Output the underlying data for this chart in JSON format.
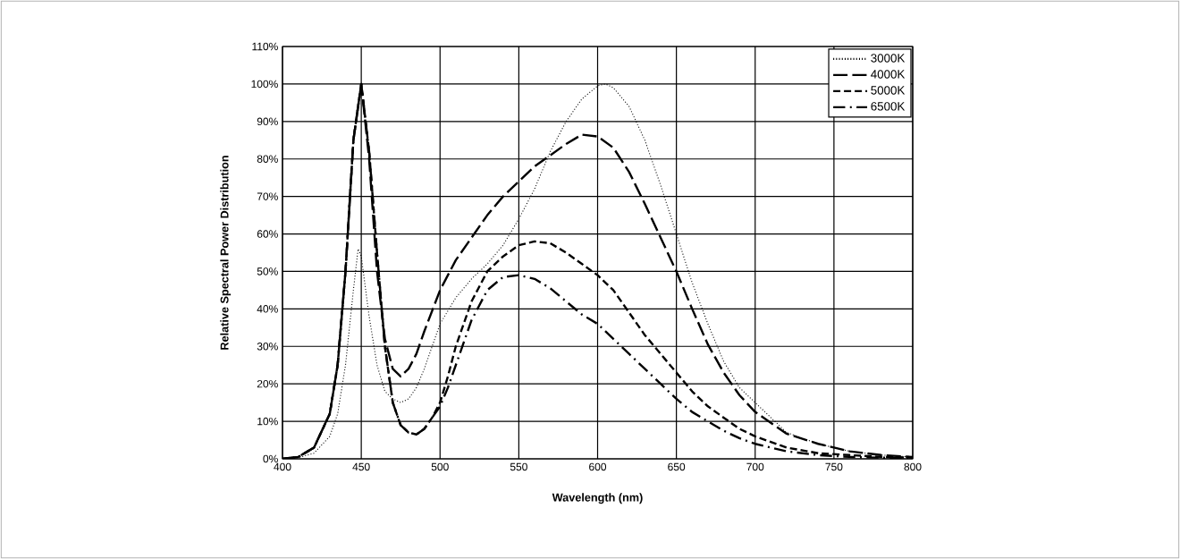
{
  "chart_data": {
    "type": "line",
    "xlabel": "Wavelength (nm)",
    "ylabel": "Relative Spectral Power Distribution",
    "xlim": [
      400,
      800
    ],
    "xticks": [
      400,
      450,
      500,
      550,
      600,
      650,
      700,
      750,
      800
    ],
    "ylim": [
      0,
      110
    ],
    "yticks": [
      {
        "value": 0,
        "label": "0%"
      },
      {
        "value": 10,
        "label": "10%"
      },
      {
        "value": 20,
        "label": "20%"
      },
      {
        "value": 30,
        "label": "30%"
      },
      {
        "value": 40,
        "label": "40%"
      },
      {
        "value": 50,
        "label": "50%"
      },
      {
        "value": 60,
        "label": "60%"
      },
      {
        "value": 70,
        "label": "70%"
      },
      {
        "value": 80,
        "label": "80%"
      },
      {
        "value": 90,
        "label": "90%"
      },
      {
        "value": 100,
        "label": "100%"
      },
      {
        "value": 110,
        "label": "110%"
      }
    ],
    "grid": true,
    "legend": "top right",
    "marker": "none",
    "series": [
      {
        "name": "3000K",
        "color": "#000000",
        "line_style": "dotted",
        "x": [
          400,
          410,
          420,
          430,
          435,
          440,
          445,
          448,
          450,
          455,
          460,
          465,
          470,
          475,
          480,
          485,
          490,
          500,
          510,
          520,
          530,
          540,
          550,
          560,
          570,
          580,
          590,
          600,
          605,
          610,
          620,
          630,
          640,
          650,
          660,
          670,
          680,
          690,
          700,
          720,
          740,
          760,
          780,
          800
        ],
        "values": [
          0,
          0.3,
          1.5,
          6,
          12,
          25,
          45,
          56,
          54,
          38,
          25,
          18,
          16,
          15,
          16,
          19,
          24,
          36,
          43,
          48,
          52,
          57,
          64,
          72,
          82,
          90,
          96,
          99.5,
          100,
          99,
          94,
          85,
          73,
          60,
          47,
          36,
          26,
          19,
          15,
          7,
          4,
          2,
          1,
          0.5
        ]
      },
      {
        "name": "4000K",
        "color": "#000000",
        "line_style": "long dashed",
        "x": [
          400,
          410,
          420,
          430,
          435,
          440,
          445,
          450,
          455,
          460,
          465,
          470,
          475,
          480,
          485,
          490,
          500,
          510,
          520,
          530,
          540,
          550,
          560,
          570,
          580,
          590,
          600,
          610,
          620,
          630,
          640,
          650,
          660,
          670,
          680,
          690,
          700,
          720,
          740,
          760,
          780,
          800
        ],
        "values": [
          0,
          0.5,
          3,
          12,
          25,
          50,
          85,
          100,
          80,
          50,
          32,
          24,
          22,
          24,
          28,
          34,
          45,
          53,
          59,
          65,
          70,
          74,
          78,
          81,
          84,
          86.5,
          86,
          83,
          76.5,
          68,
          59,
          50,
          40,
          30.5,
          23,
          17,
          12.5,
          6.7,
          4,
          2,
          1,
          0.5
        ]
      },
      {
        "name": "5000K",
        "color": "#000000",
        "line_style": "dashed",
        "x": [
          400,
          410,
          420,
          430,
          435,
          440,
          445,
          450,
          455,
          460,
          465,
          470,
          475,
          480,
          485,
          490,
          495,
          500,
          505,
          510,
          520,
          530,
          540,
          550,
          560,
          570,
          580,
          590,
          600,
          610,
          620,
          630,
          640,
          650,
          660,
          670,
          680,
          690,
          700,
          720,
          740,
          760,
          780,
          800
        ],
        "values": [
          0,
          0.5,
          3,
          12,
          25,
          50,
          85,
          100,
          82,
          55,
          30,
          15,
          9,
          7,
          6.5,
          8,
          11,
          15,
          22,
          30,
          42,
          50,
          54,
          57,
          58,
          57.5,
          55,
          52,
          49,
          45,
          39,
          33,
          28,
          23,
          18,
          14,
          11,
          8,
          6,
          3,
          1.5,
          1,
          0.5,
          0.3
        ]
      },
      {
        "name": "6500K",
        "color": "#000000",
        "line_style": "dash dot",
        "x": [
          400,
          410,
          420,
          430,
          435,
          440,
          445,
          450,
          455,
          460,
          465,
          470,
          475,
          480,
          485,
          490,
          495,
          500,
          505,
          510,
          520,
          530,
          540,
          550,
          560,
          570,
          580,
          590,
          600,
          610,
          620,
          630,
          640,
          650,
          660,
          670,
          680,
          690,
          700,
          720,
          740,
          760,
          780,
          800
        ],
        "values": [
          0,
          0.5,
          3,
          12,
          25,
          50,
          85,
          100,
          82,
          55,
          30,
          15,
          9,
          7,
          6.5,
          8,
          11,
          14,
          19,
          25,
          37,
          45,
          48.5,
          49,
          48,
          45.5,
          42,
          38.5,
          36,
          32,
          28,
          24,
          20,
          16,
          12.5,
          10,
          7.5,
          5.5,
          4,
          2,
          1,
          0.5,
          0.3,
          0.2
        ]
      }
    ]
  }
}
